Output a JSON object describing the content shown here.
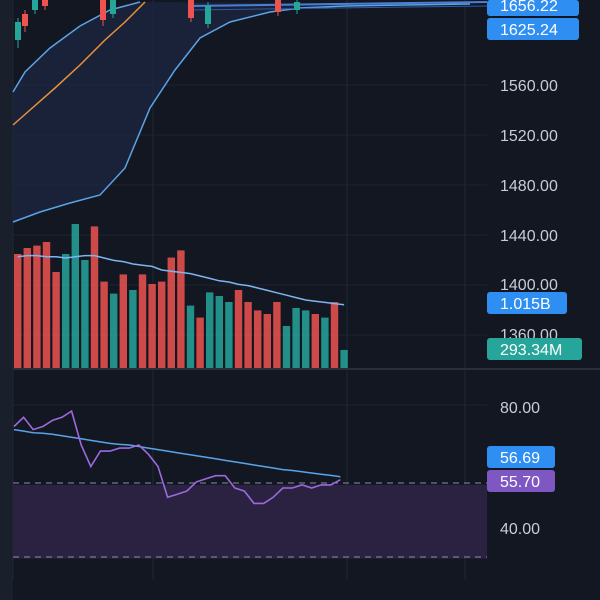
{
  "price_panel": {
    "price_axis_ticks": [
      "1560.00",
      "1520.00",
      "1480.00",
      "1440.00",
      "1400.00",
      "1360.00"
    ],
    "badges": [
      {
        "label": "1656.22",
        "color": "#2f8ef2"
      },
      {
        "label": "1625.24",
        "color": "#2f8ef2"
      },
      {
        "label": "1.015B",
        "color": "#2f8ef2"
      },
      {
        "label": "293.34M",
        "color": "#26a69a"
      }
    ]
  },
  "indicator_panel": {
    "axis_ticks": [
      "80.00",
      "40.00"
    ],
    "badges": [
      {
        "label": "56.69",
        "color": "#2f8ef2"
      },
      {
        "label": "55.70",
        "color": "#7e57c2"
      }
    ]
  },
  "colors": {
    "background": "#131722",
    "up": "#26a69a",
    "down": "#ef5350",
    "ma_blue": "#5aa3e8",
    "ma_orange": "#e8923a",
    "rsi": "#9c6ade",
    "rsi_band": "#2a2240"
  },
  "chart_data": {
    "type": "candlestick",
    "price_axis": {
      "visible_range": [
        1350,
        1665
      ]
    },
    "volume_bars": [
      {
        "dir": "down",
        "value": 0.95
      },
      {
        "dir": "down",
        "value": 1.0
      },
      {
        "dir": "down",
        "value": 1.02
      },
      {
        "dir": "down",
        "value": 1.05
      },
      {
        "dir": "down",
        "value": 0.8
      },
      {
        "dir": "up",
        "value": 0.95
      },
      {
        "dir": "up",
        "value": 1.2
      },
      {
        "dir": "up",
        "value": 0.9
      },
      {
        "dir": "down",
        "value": 1.18
      },
      {
        "dir": "down",
        "value": 0.72
      },
      {
        "dir": "up",
        "value": 0.62
      },
      {
        "dir": "down",
        "value": 0.78
      },
      {
        "dir": "up",
        "value": 0.65
      },
      {
        "dir": "down",
        "value": 0.78
      },
      {
        "dir": "down",
        "value": 0.7
      },
      {
        "dir": "down",
        "value": 0.72
      },
      {
        "dir": "down",
        "value": 0.92
      },
      {
        "dir": "down",
        "value": 0.98
      },
      {
        "dir": "up",
        "value": 0.52
      },
      {
        "dir": "down",
        "value": 0.42
      },
      {
        "dir": "up",
        "value": 0.63
      },
      {
        "dir": "up",
        "value": 0.6
      },
      {
        "dir": "up",
        "value": 0.55
      },
      {
        "dir": "down",
        "value": 0.65
      },
      {
        "dir": "down",
        "value": 0.55
      },
      {
        "dir": "down",
        "value": 0.48
      },
      {
        "dir": "down",
        "value": 0.45
      },
      {
        "dir": "down",
        "value": 0.55
      },
      {
        "dir": "up",
        "value": 0.35
      },
      {
        "dir": "up",
        "value": 0.5
      },
      {
        "dir": "up",
        "value": 0.48
      },
      {
        "dir": "down",
        "value": 0.45
      },
      {
        "dir": "up",
        "value": 0.42
      },
      {
        "dir": "down",
        "value": 0.55
      },
      {
        "dir": "up",
        "value": 0.15
      }
    ],
    "volume_ma": [
      0.86,
      0.87,
      0.87,
      0.86,
      0.86,
      0.85,
      0.86,
      0.87,
      0.87,
      0.85,
      0.83,
      0.82,
      0.8,
      0.79,
      0.78,
      0.75,
      0.74,
      0.73,
      0.72,
      0.7,
      0.68,
      0.66,
      0.65,
      0.63,
      0.62,
      0.6,
      0.58,
      0.56,
      0.54,
      0.52,
      0.5,
      0.49,
      0.48,
      0.47,
      0.46
    ],
    "rsi": [
      73,
      76,
      72,
      73,
      75,
      76,
      78,
      67,
      60,
      65,
      65,
      66,
      66,
      67,
      64,
      60,
      50,
      51,
      52,
      55,
      56,
      57,
      57,
      53,
      52,
      48,
      48,
      50,
      53,
      53,
      54,
      53,
      54,
      54,
      55.7
    ],
    "rsi_ma": [
      72,
      71.5,
      71,
      70.8,
      70.5,
      70,
      69.5,
      69,
      68.5,
      68,
      67.5,
      67.2,
      67,
      66.5,
      66,
      65.5,
      65,
      64.5,
      64,
      63.5,
      63,
      62.5,
      62,
      61.5,
      61,
      60.5,
      60,
      59.5,
      59,
      58.7,
      58.3,
      57.9,
      57.5,
      57.1,
      56.69
    ],
    "rsi_axis": {
      "levels": [
        70,
        30
      ]
    }
  }
}
